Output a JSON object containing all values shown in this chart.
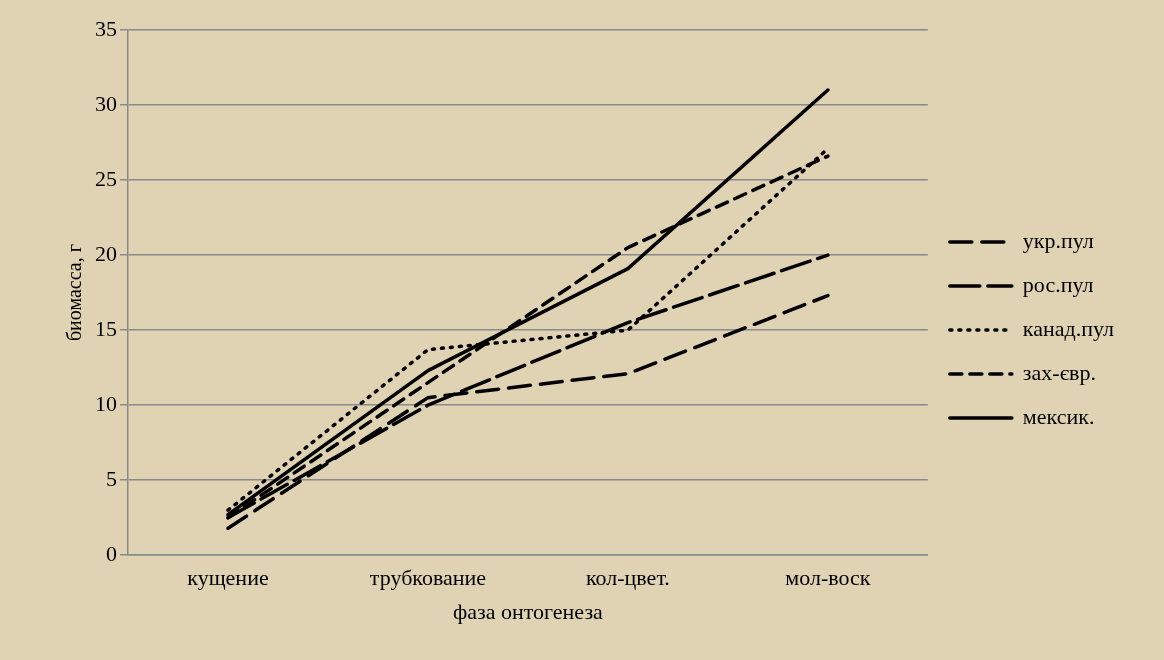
{
  "chart_data": {
    "type": "line",
    "xlabel": "фаза онтогенеза",
    "ylabel": "биомасса, г",
    "categories": [
      "кущение",
      "трубкование",
      "кол-цвет.",
      "мол-воск"
    ],
    "series": [
      {
        "name": "укр.пул",
        "color": "#000000",
        "line_style": "dashed",
        "values": [
          1.8,
          10.5,
          12.1,
          17.3
        ]
      },
      {
        "name": "рос.пул",
        "color": "#000000",
        "line_style": "dashed",
        "values": [
          2.5,
          10.0,
          15.5,
          20.0
        ]
      },
      {
        "name": "канад.пул",
        "color": "#000000",
        "line_style": "dotted",
        "values": [
          3.0,
          13.7,
          15.0,
          27.1
        ]
      },
      {
        "name": "зах-євр.",
        "color": "#000000",
        "line_style": "dashed",
        "values": [
          2.5,
          11.5,
          20.5,
          26.6
        ]
      },
      {
        "name": "мексик.",
        "color": "#000000",
        "line_style": "solid",
        "values": [
          2.7,
          12.3,
          19.1,
          31.0
        ]
      }
    ],
    "ylim": [
      0,
      35
    ],
    "yticks": [
      0,
      5,
      10,
      15,
      20,
      25,
      30,
      35
    ],
    "grid": "y",
    "legend": "right",
    "marker": "none"
  }
}
